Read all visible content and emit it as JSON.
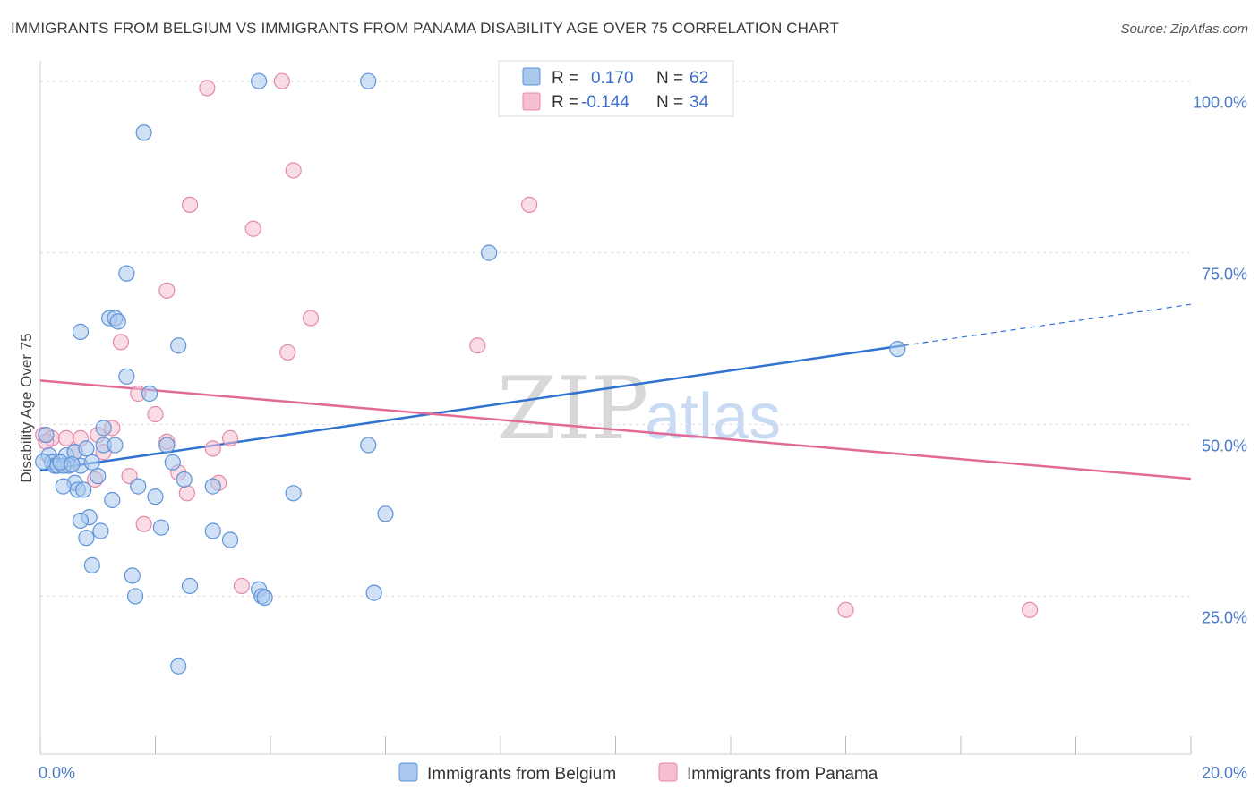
{
  "title": "IMMIGRANTS FROM BELGIUM VS IMMIGRANTS FROM PANAMA DISABILITY AGE OVER 75 CORRELATION CHART",
  "source": "Source: ZipAtlas.com",
  "watermark": {
    "zip": "ZIP",
    "atlas": "atlas"
  },
  "colors": {
    "belgium_fill": "#a9c8ee",
    "belgium_stroke": "#5d93d8",
    "belgium_line": "#2f72d0",
    "panama_fill": "#f6bfd0",
    "panama_stroke": "#e589a8",
    "panama_line": "#e06a98",
    "grid": "#dddddd",
    "axis_label": "#4a7bc8"
  },
  "legend": {
    "belgium": {
      "r_label": "R =",
      "r_value": "0.170",
      "n_label": "N =",
      "n_value": "62"
    },
    "panama": {
      "r_label": "R =",
      "r_value": "-0.144",
      "n_label": "N =",
      "n_value": "34"
    }
  },
  "chart_data": {
    "type": "scatter",
    "title": "IMMIGRANTS FROM BELGIUM VS IMMIGRANTS FROM PANAMA DISABILITY AGE OVER 75 CORRELATION CHART",
    "xlabel": "",
    "ylabel": "Disability Age Over 75",
    "xlim": [
      0,
      20
    ],
    "ylim": [
      2,
      104
    ],
    "x_tick_labels": [
      "0.0%",
      "20.0%"
    ],
    "y_ticks": [
      25,
      50,
      75,
      100
    ],
    "y_tick_labels": [
      "25.0%",
      "50.0%",
      "75.0%",
      "100.0%"
    ],
    "grid": true,
    "legend_position": "top-center",
    "series": [
      {
        "name": "Immigrants from Belgium",
        "points": [
          [
            3.8,
            100
          ],
          [
            5.7,
            100
          ],
          [
            1.8,
            92.5
          ],
          [
            7.8,
            75
          ],
          [
            1.5,
            72
          ],
          [
            0.7,
            63.5
          ],
          [
            1.2,
            65.5
          ],
          [
            1.3,
            65.5
          ],
          [
            1.35,
            65
          ],
          [
            2.4,
            61.5
          ],
          [
            14.9,
            61
          ],
          [
            1.5,
            57
          ],
          [
            1.9,
            54.5
          ],
          [
            1.1,
            49.5
          ],
          [
            0.1,
            48.5
          ],
          [
            0.15,
            45.5
          ],
          [
            0.2,
            44.5
          ],
          [
            0.25,
            44
          ],
          [
            0.3,
            44
          ],
          [
            0.45,
            45.5
          ],
          [
            0.5,
            44
          ],
          [
            0.6,
            46
          ],
          [
            0.8,
            46.5
          ],
          [
            1.1,
            47
          ],
          [
            1.3,
            47
          ],
          [
            2.2,
            47
          ],
          [
            5.7,
            47
          ],
          [
            0.4,
            44
          ],
          [
            0.7,
            44
          ],
          [
            0.9,
            44.5
          ],
          [
            2.3,
            44.5
          ],
          [
            1.0,
            42.5
          ],
          [
            0.6,
            41.5
          ],
          [
            0.4,
            41
          ],
          [
            0.65,
            40.5
          ],
          [
            0.75,
            40.5
          ],
          [
            2.5,
            42
          ],
          [
            3.0,
            41
          ],
          [
            1.7,
            41
          ],
          [
            2.0,
            39.5
          ],
          [
            1.25,
            39
          ],
          [
            4.4,
            40
          ],
          [
            6.0,
            37
          ],
          [
            0.85,
            36.5
          ],
          [
            1.05,
            34.5
          ],
          [
            2.1,
            35
          ],
          [
            3.0,
            34.5
          ],
          [
            3.3,
            33.2
          ],
          [
            0.8,
            33.5
          ],
          [
            0.9,
            29.5
          ],
          [
            1.6,
            28
          ],
          [
            1.65,
            25
          ],
          [
            2.6,
            26.5
          ],
          [
            3.8,
            26
          ],
          [
            3.85,
            25
          ],
          [
            3.9,
            24.8
          ],
          [
            5.8,
            25.5
          ],
          [
            2.4,
            14.8
          ],
          [
            0.7,
            36
          ],
          [
            0.35,
            44.5
          ],
          [
            0.55,
            44.2
          ],
          [
            0.05,
            44.6
          ]
        ]
      },
      {
        "name": "Immigrants from Panama",
        "points": [
          [
            2.9,
            99
          ],
          [
            4.2,
            100
          ],
          [
            4.4,
            87
          ],
          [
            2.6,
            82
          ],
          [
            8.5,
            82
          ],
          [
            3.7,
            78.5
          ],
          [
            2.2,
            69.5
          ],
          [
            4.7,
            65.5
          ],
          [
            1.4,
            62
          ],
          [
            4.3,
            60.5
          ],
          [
            7.6,
            61.5
          ],
          [
            1.7,
            54.5
          ],
          [
            2.0,
            51.5
          ],
          [
            0.05,
            48.5
          ],
          [
            0.2,
            48
          ],
          [
            0.45,
            48
          ],
          [
            0.7,
            48
          ],
          [
            1.25,
            49.5
          ],
          [
            1.0,
            48.5
          ],
          [
            3.3,
            48
          ],
          [
            2.2,
            47.5
          ],
          [
            0.6,
            46
          ],
          [
            1.1,
            46
          ],
          [
            3.0,
            46.5
          ],
          [
            1.55,
            42.5
          ],
          [
            0.95,
            42
          ],
          [
            2.4,
            43
          ],
          [
            2.55,
            40
          ],
          [
            3.1,
            41.5
          ],
          [
            1.8,
            35.5
          ],
          [
            3.5,
            26.5
          ],
          [
            14.0,
            23
          ],
          [
            17.2,
            23
          ],
          [
            0.1,
            47.5
          ]
        ]
      }
    ],
    "trend_lines": [
      {
        "series": "Immigrants from Belgium",
        "x": [
          0,
          15.0
        ],
        "y": [
          43.3,
          61.5
        ],
        "dashed_extension_to": [
          20,
          67.5
        ]
      },
      {
        "series": "Immigrants from Panama",
        "x": [
          0,
          20
        ],
        "y": [
          56.4,
          42.1
        ]
      }
    ]
  }
}
